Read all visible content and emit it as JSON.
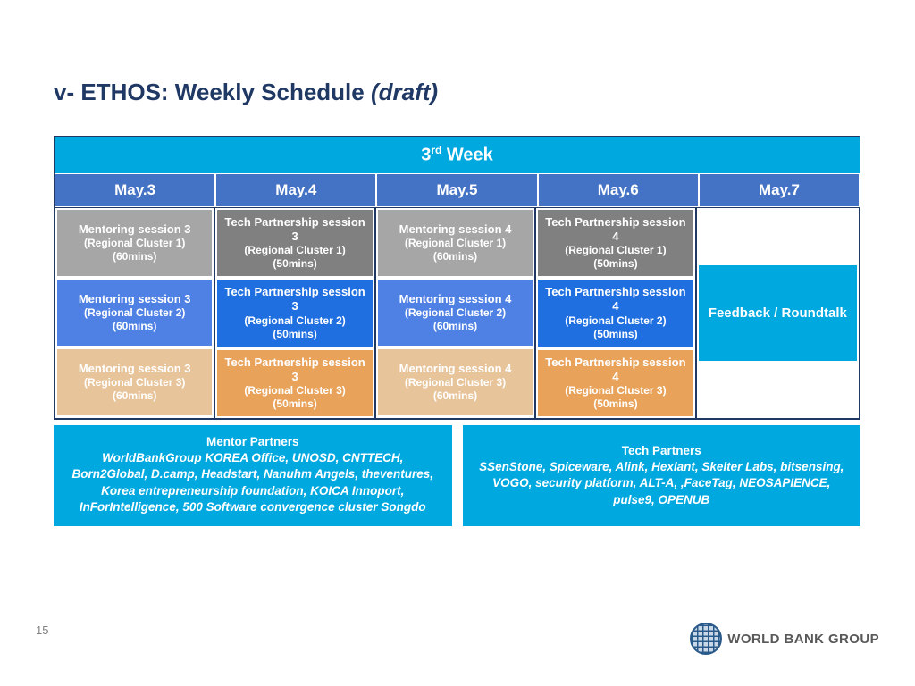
{
  "title_main": "v- ETHOS: Weekly Schedule ",
  "title_italic": "(draft)",
  "week_label_pre": "3",
  "week_label_sup": "rd",
  "week_label_post": " Week",
  "colors": {
    "banner": "#00a8e0",
    "day_header": "#4472c4",
    "gray": "#a6a6a6",
    "darkgray": "#808080",
    "blue": "#4f81e4",
    "darkblue": "#1f6fe0",
    "sand": "#e8c49a",
    "orange": "#e8a25a",
    "fb": "#00a8e0"
  },
  "days": [
    "May.3",
    "May.4",
    "May.5",
    "May.6",
    "May.7"
  ],
  "grid": [
    [
      {
        "t1": "Mentoring session 3",
        "t2": "(Regional Cluster 1)",
        "t3": "(60mins)",
        "c": "gray"
      },
      {
        "t1": "Mentoring session 3",
        "t2": "(Regional Cluster 2)",
        "t3": "(60mins)",
        "c": "blue"
      },
      {
        "t1": "Mentoring session 3",
        "t2": "(Regional Cluster 3)",
        "t3": "(60mins)",
        "c": "sand"
      }
    ],
    [
      {
        "t1": "Tech Partnership session 3",
        "t2": "(Regional Cluster 1)",
        "t3": "(50mins)",
        "c": "darkgray"
      },
      {
        "t1": "Tech Partnership session 3",
        "t2": "(Regional Cluster 2)",
        "t3": "(50mins)",
        "c": "darkblue"
      },
      {
        "t1": "Tech Partnership session 3",
        "t2": "(Regional Cluster 3)",
        "t3": "(50mins)",
        "c": "orange"
      }
    ],
    [
      {
        "t1": "Mentoring session 4",
        "t2": "(Regional Cluster 1)",
        "t3": "(60mins)",
        "c": "gray"
      },
      {
        "t1": "Mentoring session 4",
        "t2": "(Regional Cluster 2)",
        "t3": "(60mins)",
        "c": "blue"
      },
      {
        "t1": "Mentoring session 4",
        "t2": "(Regional Cluster 3)",
        "t3": "(60mins)",
        "c": "sand"
      }
    ],
    [
      {
        "t1": "Tech Partnership session 4",
        "t2": "(Regional Cluster 1)",
        "t3": "(50mins)",
        "c": "darkgray"
      },
      {
        "t1": "Tech Partnership session 4",
        "t2": "(Regional Cluster 2)",
        "t3": "(50mins)",
        "c": "darkblue"
      },
      {
        "t1": "Tech Partnership session 4",
        "t2": "(Regional Cluster 3)",
        "t3": "(50mins)",
        "c": "orange"
      }
    ]
  ],
  "feedback": "Feedback / Roundtalk",
  "mentor_title": "Mentor Partners",
  "mentor_body": "WorldBankGroup KOREA Office, UNOSD, CNTTECH, Born2Global, D.camp, Headstart, Nanuhm Angels, theventures, Korea entrepreneurship foundation, KOICA Innoport, InForIntelligence, 500 Software convergence cluster Songdo",
  "tech_title": "Tech Partners",
  "tech_body": "SSenStone, Spiceware, Alink, Hexlant, Skelter Labs, bitsensing, VOGO, security platform, ALT-A, ,FaceTag, NEOSAPIENCE, pulse9, OPENUB",
  "page_number": "15",
  "logo_text": "WORLD BANK GROUP"
}
